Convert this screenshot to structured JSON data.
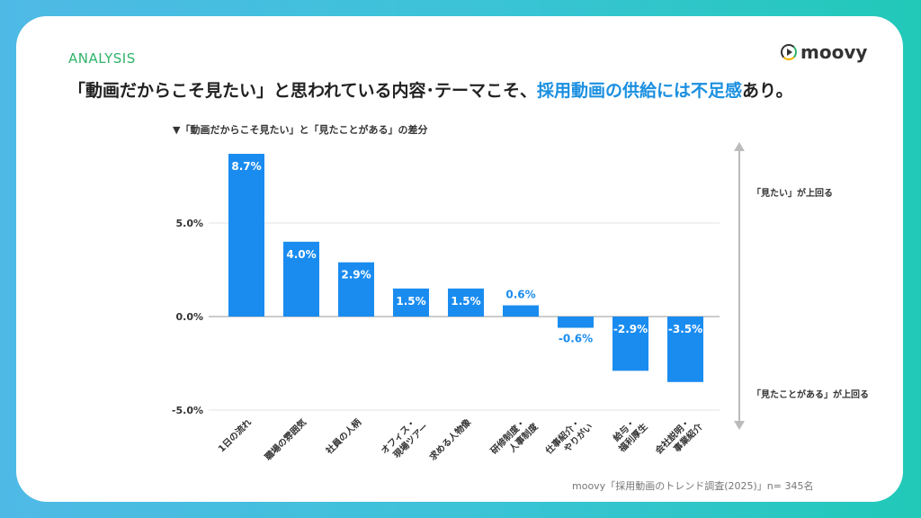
{
  "header": {
    "section": "ANALYSIS",
    "logo_text": "moovy",
    "headline_pre": "「動画だからこそ見たい」と思われている内容･テーマこそ、",
    "headline_highlight": "採用動画の供給には不足感",
    "headline_post": "あり。"
  },
  "colors": {
    "bar": "#1a8cf0",
    "accent": "#1a8fe0",
    "section": "#2fb36a"
  },
  "chart_data": {
    "type": "bar",
    "title": "▼「動画だからこそ見たい」と「見たことがある」の差分",
    "categories": [
      "1日の流れ",
      "職場の雰囲気",
      "社員の人柄",
      "オフィス・現場ツアー",
      "求める人物像",
      "研修制度・人事制度",
      "仕事紹介・やりがい",
      "給与・福利厚生",
      "会社説明・事業紹介"
    ],
    "values": [
      8.7,
      4.0,
      2.9,
      1.5,
      1.5,
      0.6,
      -0.6,
      -2.9,
      -3.5
    ],
    "data_labels": [
      "8.7%",
      "4.0%",
      "2.9%",
      "1.5%",
      "1.5%",
      "0.6%",
      "-0.6%",
      "-2.9%",
      "-3.5%"
    ],
    "ylim": [
      -5,
      9
    ],
    "yticks": [
      {
        "v": 5,
        "label": "5.0%"
      },
      {
        "v": 0,
        "label": "0.0%"
      },
      {
        "v": -5,
        "label": "-5.0%"
      }
    ],
    "grid": true,
    "annotations": {
      "up": "「見たい」が上回る",
      "down": "「見たことがある」が上回る"
    }
  },
  "footer": {
    "source": "moovy「採用動画のトレンド調査(2025)」n= 345名"
  }
}
